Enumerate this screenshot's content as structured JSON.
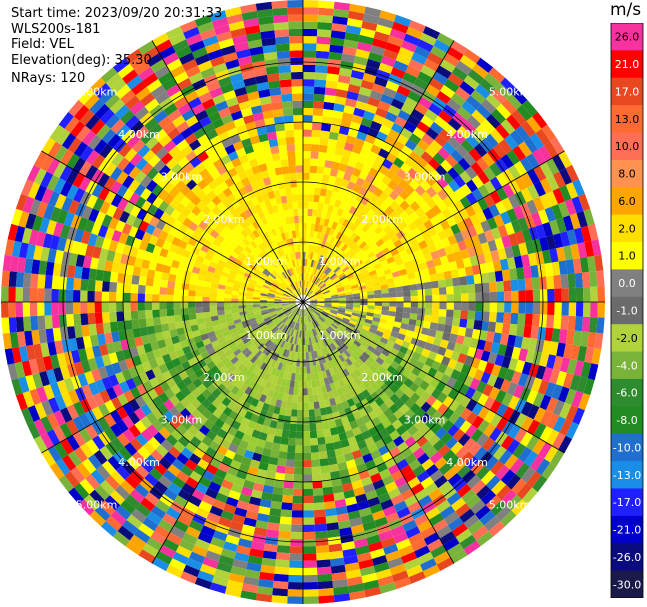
{
  "info": {
    "start_time": "Start time: 2023/09/20 20:31:33",
    "instrument": "WLS200s-181",
    "field": "Field: VEL",
    "elevation": "Elevation(deg): 35.30",
    "nrays": "NRays: 120"
  },
  "chart_data": {
    "type": "heatmap",
    "projection": "polar-ppi",
    "field": "VEL",
    "units": "m/s",
    "nrays": 120,
    "grid": true,
    "range_ring_labels": [
      "1.00km",
      "2.00km",
      "3.00km",
      "4.00km",
      "5.00km"
    ],
    "colorbar": {
      "title": "m/s",
      "ticks": [
        "26.0",
        "21.0",
        "17.0",
        "13.0",
        "10.0",
        "8.0",
        "6.0",
        "2.0",
        "1.0",
        "0.0",
        "-1.0",
        "-2.0",
        "-4.0",
        "-6.0",
        "-8.0",
        "-10.0",
        "-13.0",
        "-17.0",
        "-21.0",
        "-26.0",
        "-30.0"
      ],
      "colors": [
        "#f7319e",
        "#ff0000",
        "#e8471f",
        "#ff6a32",
        "#ff6e55",
        "#ff9250",
        "#ffa500",
        "#ffdf00",
        "#ffff00",
        "#808080",
        "#6b6b6b",
        "#b0d23a",
        "#7ab33a",
        "#2e8b2e",
        "#228b22",
        "#1e6fd0",
        "#1a8ee6",
        "#2020ff",
        "#0000c8",
        "#0b0b80",
        "#1a1a4a"
      ]
    }
  }
}
